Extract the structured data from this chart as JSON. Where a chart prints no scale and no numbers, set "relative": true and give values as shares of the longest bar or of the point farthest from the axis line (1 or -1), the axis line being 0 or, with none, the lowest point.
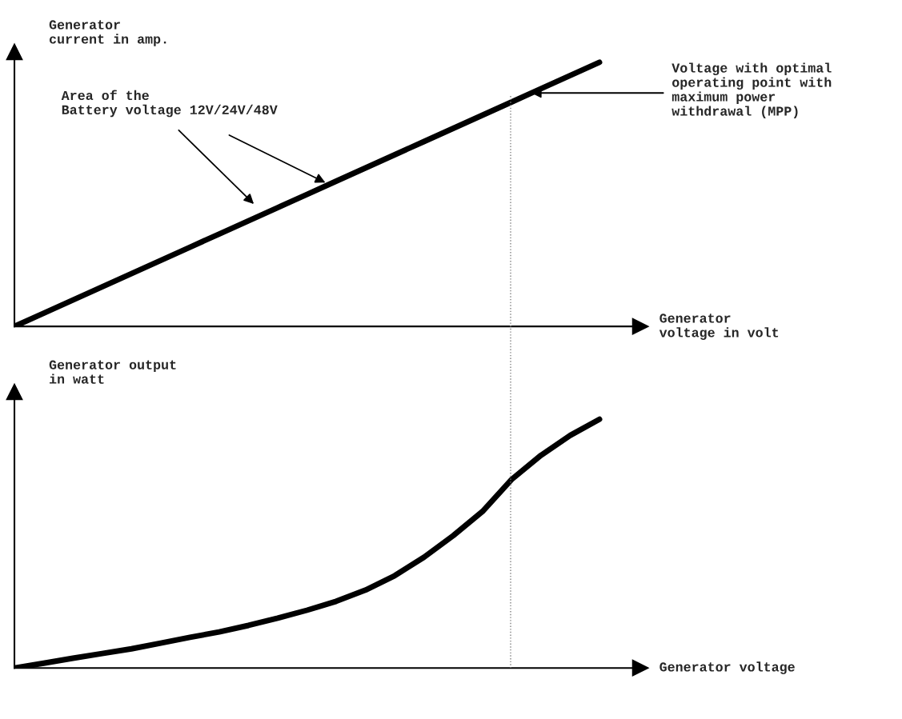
{
  "chart_data": [
    {
      "type": "line",
      "relative": true,
      "ylabel": "Generator\ncurrent in amp.",
      "xlabel": "Generator\nvoltage in volt",
      "marker": "none",
      "line_style": "solid",
      "categories": [
        null,
        null,
        null,
        null,
        null,
        null,
        null,
        null,
        null,
        null,
        null,
        null,
        null,
        null,
        null,
        null,
        null,
        null,
        null,
        null,
        null
      ],
      "series": [
        {
          "color": "#000000",
          "values": [
            0,
            0.05,
            0.1,
            0.15,
            0.2,
            0.25,
            0.3,
            0.35,
            0.4,
            0.45,
            0.5,
            0.55,
            0.6,
            0.65,
            0.7,
            0.75,
            0.8,
            0.85,
            0.9,
            0.95,
            1
          ]
        }
      ],
      "annotations": [
        "Area of the\nBattery voltage 12V/24V/48V",
        "Voltage with optimal\noperating point with\nmaximum power\nwithdrawal (MPP)"
      ]
    },
    {
      "type": "line",
      "relative": true,
      "ylabel": "Generator output\nin watt",
      "xlabel": "Generator voltage",
      "marker": "none",
      "line_style": "solid",
      "categories": [
        null,
        null,
        null,
        null,
        null,
        null,
        null,
        null,
        null,
        null,
        null,
        null,
        null,
        null,
        null,
        null,
        null,
        null,
        null,
        null,
        null
      ],
      "series": [
        {
          "color": "#000000",
          "values": [
            0,
            0.019,
            0.039,
            0.058,
            0.077,
            0.1,
            0.123,
            0.145,
            0.171,
            0.2,
            0.232,
            0.268,
            0.313,
            0.371,
            0.445,
            0.532,
            0.629,
            0.758,
            0.855,
            0.935,
            1
          ]
        }
      ]
    }
  ]
}
